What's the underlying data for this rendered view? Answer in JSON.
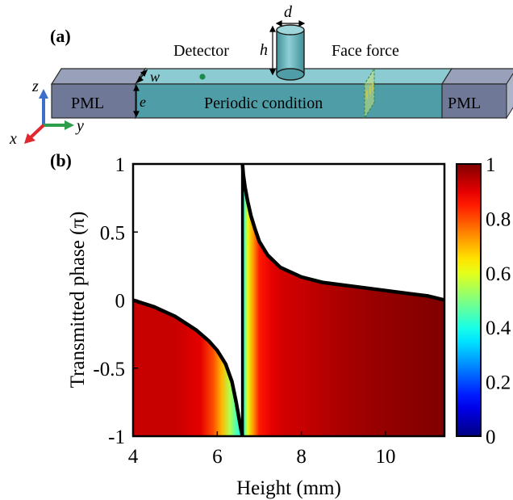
{
  "panel_a": {
    "label": "(a)",
    "detector_label": "Detector",
    "force_label": "Face force",
    "periodic_label": "Periodic condition",
    "pml_left": "PML",
    "pml_right": "PML",
    "dim_d": "d",
    "dim_h": "h",
    "dim_w": "w",
    "dim_e": "e",
    "axis_z": "z",
    "axis_y": "y",
    "axis_x": "x",
    "colors": {
      "waveguide_top": "#8ccbd1",
      "waveguide_front": "#4f9ea7",
      "pml_top": "#98a1b9",
      "pml_front": "#6f7896",
      "cylinder": "#5fb1b9",
      "detector_dot": "#1a8a4a",
      "force_plane": "#c8e07a",
      "axis_z": "#3b6fc9",
      "axis_y": "#2e9e4c",
      "axis_x": "#e0282e"
    }
  },
  "panel_b": {
    "label": "(b)",
    "chart_data": {
      "type": "area",
      "xlabel": "Height (mm)",
      "ylabel": "Transmitted phase (π)",
      "xlim": [
        4,
        11.4
      ],
      "ylim": [
        -1,
        1
      ],
      "xticks": [
        4,
        6,
        8,
        10
      ],
      "xtick_labels": [
        "4",
        "6",
        "8",
        "10"
      ],
      "yticks": [
        1,
        0.5,
        0,
        -0.5,
        -1
      ],
      "ytick_labels": [
        "1",
        "0.5",
        "0",
        "-0.5",
        "-1"
      ],
      "grid": false,
      "resonance_height": 6.6,
      "series": [
        {
          "x": [
            4.0,
            4.5,
            5.0,
            5.5,
            5.8,
            6.0,
            6.2,
            6.35,
            6.45,
            6.52,
            6.57,
            6.6
          ],
          "y": [
            0.0,
            -0.05,
            -0.12,
            -0.22,
            -0.3,
            -0.37,
            -0.47,
            -0.6,
            -0.75,
            -0.87,
            -0.96,
            -1.0
          ]
        },
        {
          "x": [
            6.6,
            6.62,
            6.66,
            6.72,
            6.8,
            6.9,
            7.0,
            7.2,
            7.5,
            8.0,
            8.5,
            9.0,
            9.5,
            10.0,
            10.5,
            11.0,
            11.4
          ],
          "y": [
            1.0,
            0.92,
            0.83,
            0.73,
            0.62,
            0.52,
            0.43,
            0.33,
            0.24,
            0.17,
            0.13,
            0.11,
            0.09,
            0.07,
            0.05,
            0.03,
            0.0
          ]
        }
      ],
      "fill_transmission": {
        "x": [
          4.0,
          5.0,
          5.6,
          5.9,
          6.1,
          6.3,
          6.45,
          6.55,
          6.6,
          6.65,
          6.72,
          6.85,
          7.0,
          7.3,
          7.6,
          8.0,
          9.0,
          10.0,
          11.4
        ],
        "value": [
          0.93,
          0.93,
          0.9,
          0.8,
          0.7,
          0.55,
          0.45,
          0.4,
          0.35,
          0.45,
          0.6,
          0.72,
          0.85,
          0.9,
          0.92,
          0.93,
          0.96,
          0.98,
          1.0
        ]
      },
      "colorbar": {
        "min": 0,
        "max": 1,
        "tick_values": [
          1,
          0.8,
          0.6,
          0.4,
          0.2,
          0
        ],
        "tick_labels": [
          "1",
          "0.8",
          "0.6",
          "0.4",
          "0.2",
          "0"
        ],
        "colormap": "jet"
      }
    }
  }
}
